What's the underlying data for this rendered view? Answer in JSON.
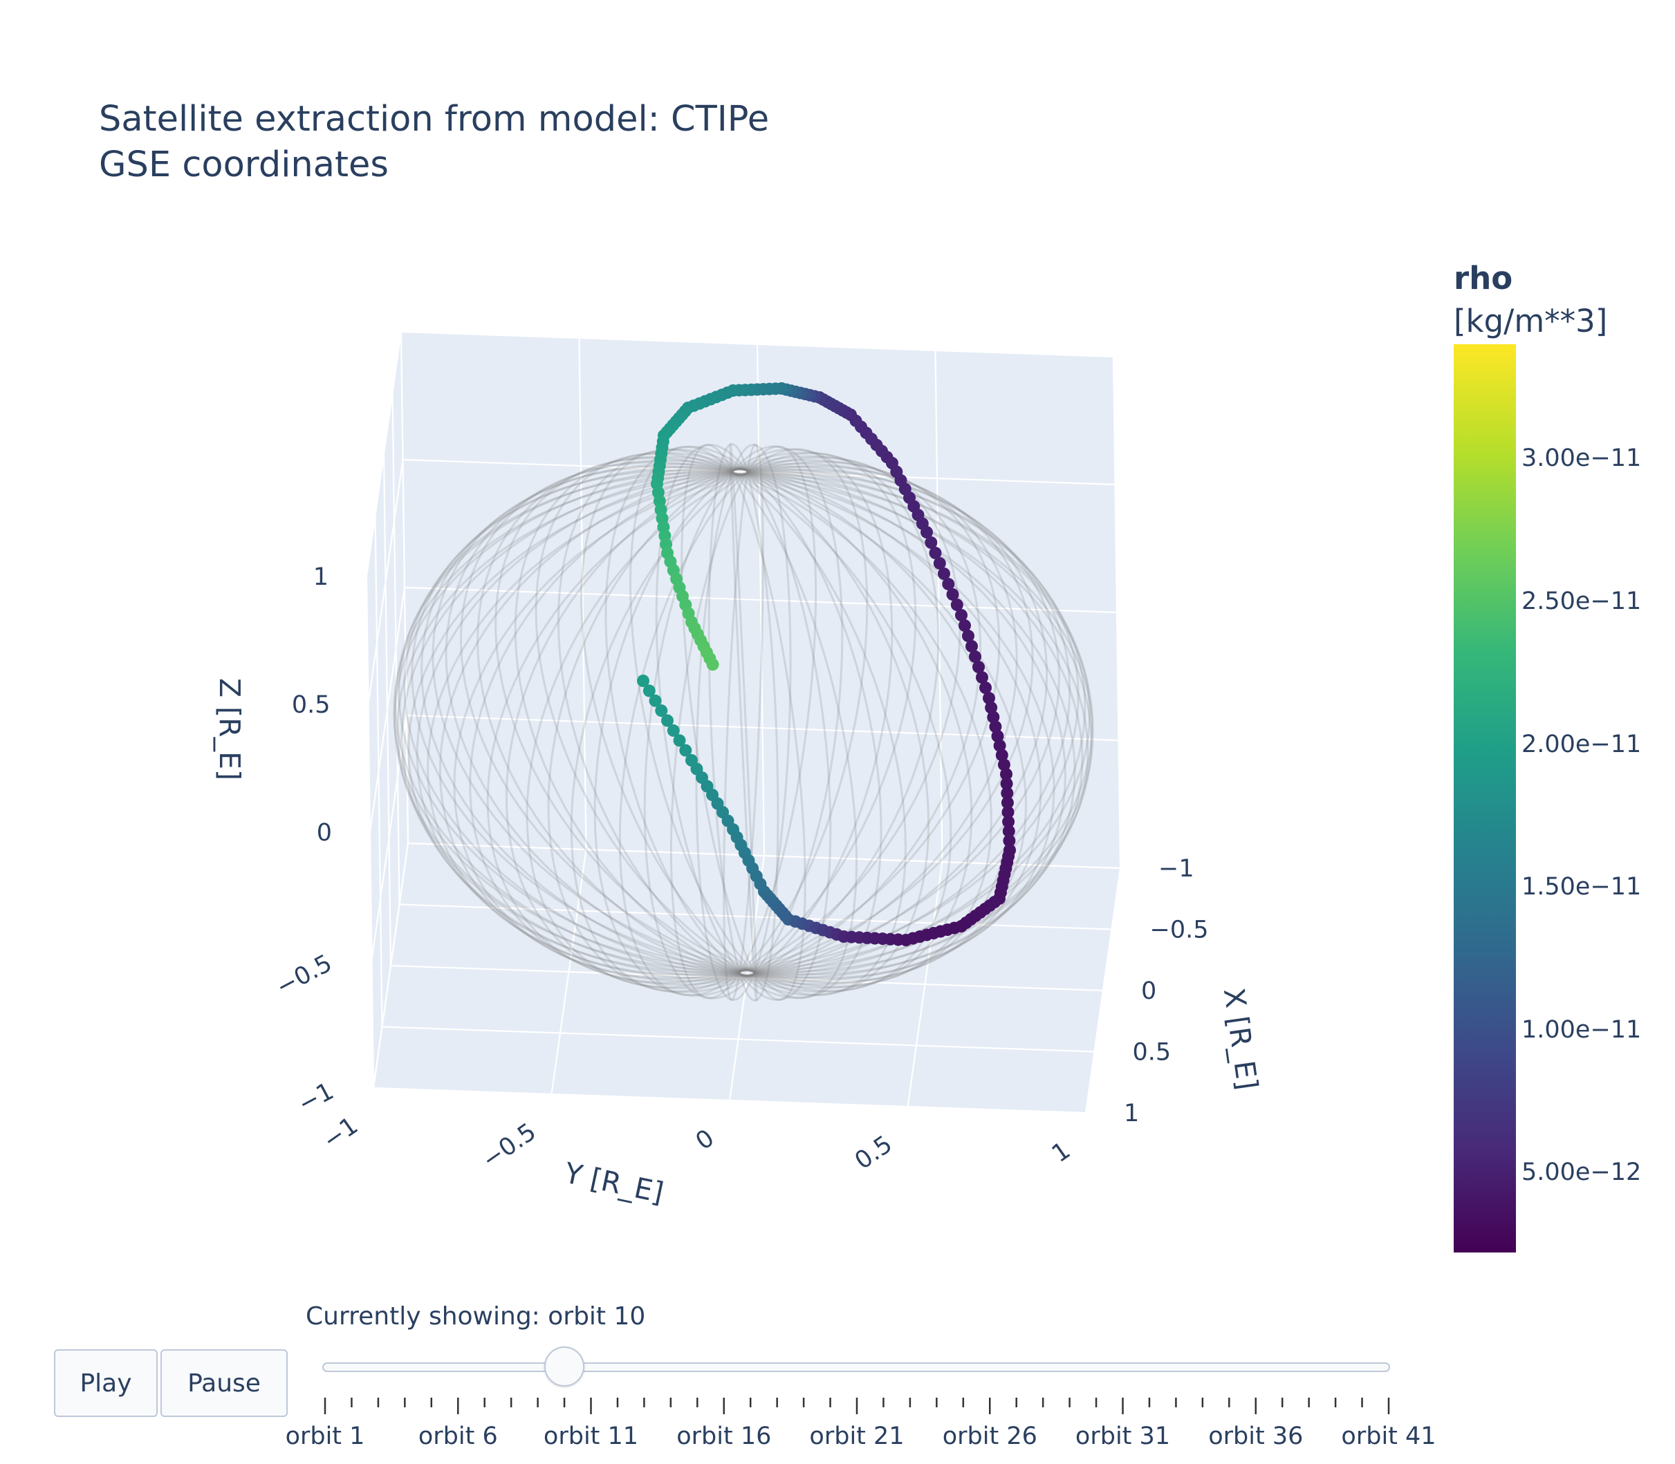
{
  "title": {
    "line1": "Satellite extraction from model: CTIPe",
    "line2": "GSE coordinates"
  },
  "chart_data": {
    "type": "scatter3d",
    "xlabel": "X [R_E]",
    "ylabel": "Y [R_E]",
    "zlabel": "Z [R_E]",
    "xlim": [
      -1,
      1
    ],
    "ylim": [
      -1,
      1
    ],
    "zlim": [
      -1,
      1
    ],
    "x_ticks": [
      "−1",
      "−0.5",
      "0",
      "0.5",
      "1"
    ],
    "y_ticks": [
      "−1",
      "−0.5",
      "0",
      "0.5",
      "1"
    ],
    "z_ticks": [
      "−1",
      "−0.5",
      "0",
      "0.5",
      "1"
    ],
    "grid": true,
    "colorscale": "Viridis",
    "colorbar": {
      "title": "rho",
      "unit": "[kg/m**3]",
      "range": [
        2.2e-12,
        3.4e-11
      ],
      "ticks": [
        "3.00e−11",
        "2.50e−11",
        "2.00e−11",
        "1.50e−11",
        "1.00e−11",
        "5.00e−12"
      ],
      "tick_values": [
        3e-11,
        2.5e-11,
        2e-11,
        1.5e-11,
        1e-11,
        5e-12
      ]
    },
    "series": [
      {
        "description": "background orbit tracks (all orbits, translucent grey)"
      },
      {
        "description": "orbit 10 track colored by rho"
      }
    ]
  },
  "slider": {
    "current_label": "Currently showing: orbit 10",
    "current_orbit": 10,
    "first_orbit": 1,
    "last_orbit": 41,
    "step_labels": [
      "orbit 1",
      "orbit 6",
      "orbit 11",
      "orbit 16",
      "orbit 21",
      "orbit 26",
      "orbit 31",
      "orbit 36",
      "orbit 41"
    ]
  },
  "controls": {
    "play_label": "Play",
    "pause_label": "Pause"
  },
  "colors": {
    "scene_bg": "#e5ecf6",
    "grid": "#ffffff",
    "text": "#2a3f5f",
    "track_grey": "#808080"
  }
}
